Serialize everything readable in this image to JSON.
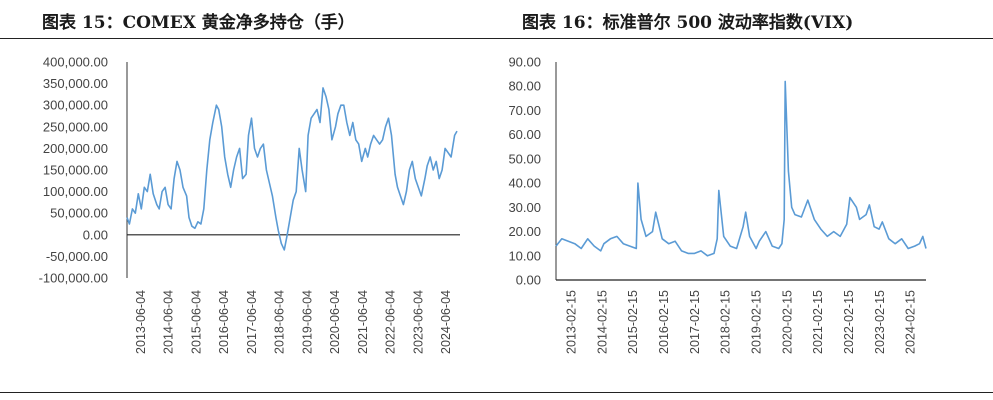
{
  "panels": {
    "left_title": "图表 15：COMEX 黄金净多持仓（手）",
    "right_title": "图表 16：标准普尔 500 波动率指数(VIX)"
  },
  "chart_data": [
    {
      "type": "line",
      "title": "图表 15：COMEX 黄金净多持仓（手）",
      "xlabel": "",
      "ylabel": "",
      "ylim": [
        -100000,
        400000
      ],
      "yticks": [
        "400,000.00",
        "350,000.00",
        "300,000.00",
        "250,000.00",
        "200,000.00",
        "150,000.00",
        "100,000.00",
        "50,000.00",
        "0.00",
        "-50,000.00",
        "-100,000.00"
      ],
      "ytick_values": [
        400000,
        350000,
        300000,
        250000,
        200000,
        150000,
        100000,
        50000,
        0,
        -50000,
        -100000
      ],
      "xticks": [
        "2013-06-04",
        "2014-06-04",
        "2015-06-04",
        "2016-06-04",
        "2017-06-04",
        "2018-06-04",
        "2019-06-04",
        "2020-06-04",
        "2021-06-04",
        "2022-06-04",
        "2023-06-04",
        "2024-06-04"
      ],
      "x_range": [
        2013.42,
        2024.6
      ],
      "color": "#5b9bd5",
      "series": [
        {
          "x": [
            2013.42,
            2013.5,
            2013.6,
            2013.7,
            2013.8,
            2013.9,
            2014.0,
            2014.1,
            2014.2,
            2014.3,
            2014.42,
            2014.5,
            2014.6,
            2014.7,
            2014.8,
            2014.9,
            2015.0,
            2015.1,
            2015.2,
            2015.3,
            2015.42,
            2015.5,
            2015.6,
            2015.7,
            2015.8,
            2015.9,
            2016.0,
            2016.1,
            2016.2,
            2016.3,
            2016.42,
            2016.5,
            2016.6,
            2016.7,
            2016.8,
            2016.9,
            2017.0,
            2017.1,
            2017.2,
            2017.3,
            2017.42,
            2017.5,
            2017.6,
            2017.7,
            2017.8,
            2017.9,
            2018.0,
            2018.1,
            2018.2,
            2018.3,
            2018.42,
            2018.5,
            2018.6,
            2018.7,
            2018.8,
            2018.9,
            2019.0,
            2019.1,
            2019.2,
            2019.3,
            2019.42,
            2019.5,
            2019.6,
            2019.7,
            2019.8,
            2019.9,
            2020.0,
            2020.1,
            2020.2,
            2020.3,
            2020.42,
            2020.5,
            2020.6,
            2020.7,
            2020.8,
            2020.9,
            2021.0,
            2021.1,
            2021.2,
            2021.3,
            2021.42,
            2021.5,
            2021.6,
            2021.7,
            2021.8,
            2021.9,
            2022.0,
            2022.1,
            2022.2,
            2022.3,
            2022.42,
            2022.5,
            2022.6,
            2022.7,
            2022.8,
            2022.9,
            2023.0,
            2023.1,
            2023.2,
            2023.3,
            2023.42,
            2023.5,
            2023.6,
            2023.7,
            2023.8,
            2023.9,
            2024.0,
            2024.1,
            2024.2,
            2024.3,
            2024.42,
            2024.5
          ],
          "y": [
            40000,
            25000,
            60000,
            50000,
            95000,
            60000,
            110000,
            100000,
            140000,
            95000,
            70000,
            60000,
            100000,
            110000,
            70000,
            60000,
            130000,
            170000,
            150000,
            110000,
            90000,
            40000,
            20000,
            15000,
            30000,
            25000,
            60000,
            150000,
            220000,
            260000,
            300000,
            290000,
            250000,
            180000,
            140000,
            110000,
            150000,
            180000,
            200000,
            130000,
            140000,
            230000,
            270000,
            200000,
            180000,
            200000,
            210000,
            150000,
            120000,
            90000,
            40000,
            10000,
            -20000,
            -35000,
            0,
            40000,
            80000,
            100000,
            200000,
            150000,
            100000,
            230000,
            270000,
            280000,
            290000,
            260000,
            340000,
            320000,
            290000,
            220000,
            250000,
            280000,
            300000,
            300000,
            260000,
            230000,
            260000,
            220000,
            210000,
            170000,
            200000,
            180000,
            210000,
            230000,
            220000,
            210000,
            220000,
            250000,
            270000,
            230000,
            140000,
            110000,
            90000,
            70000,
            100000,
            150000,
            170000,
            130000,
            110000,
            90000,
            130000,
            160000,
            180000,
            150000,
            170000,
            130000,
            150000,
            200000,
            190000,
            180000,
            230000,
            240000
          ]
        }
      ]
    },
    {
      "type": "line",
      "title": "图表 16：标准普尔 500 波动率指数(VIX)",
      "xlabel": "",
      "ylabel": "",
      "ylim": [
        0,
        90
      ],
      "yticks": [
        "90.00",
        "80.00",
        "70.00",
        "60.00",
        "50.00",
        "40.00",
        "30.00",
        "20.00",
        "10.00",
        "0.00"
      ],
      "ytick_values": [
        90,
        80,
        70,
        60,
        50,
        40,
        30,
        20,
        10,
        0
      ],
      "xticks": [
        "2013-02-15",
        "2014-02-15",
        "2015-02-15",
        "2016-02-15",
        "2017-02-15",
        "2018-02-15",
        "2019-02-15",
        "2020-02-15",
        "2021-02-15",
        "2022-02-15",
        "2023-02-15",
        "2024-02-15"
      ],
      "x_range": [
        2013.12,
        2024.55
      ],
      "color": "#5b9bd5",
      "series": [
        {
          "x": [
            2013.12,
            2013.3,
            2013.5,
            2013.7,
            2013.9,
            2014.1,
            2014.3,
            2014.5,
            2014.6,
            2014.8,
            2015.0,
            2015.2,
            2015.4,
            2015.6,
            2015.65,
            2015.75,
            2015.9,
            2016.1,
            2016.2,
            2016.4,
            2016.6,
            2016.8,
            2017.0,
            2017.2,
            2017.4,
            2017.6,
            2017.8,
            2018.0,
            2018.1,
            2018.15,
            2018.3,
            2018.5,
            2018.7,
            2018.9,
            2018.98,
            2019.1,
            2019.3,
            2019.4,
            2019.6,
            2019.8,
            2020.0,
            2020.1,
            2020.17,
            2020.2,
            2020.3,
            2020.4,
            2020.5,
            2020.7,
            2020.9,
            2021.1,
            2021.3,
            2021.5,
            2021.7,
            2021.9,
            2022.1,
            2022.2,
            2022.4,
            2022.5,
            2022.7,
            2022.8,
            2022.95,
            2023.1,
            2023.2,
            2023.4,
            2023.6,
            2023.8,
            2024.0,
            2024.2,
            2024.35,
            2024.45,
            2024.55
          ],
          "y": [
            14,
            17,
            16,
            15,
            13,
            17,
            14,
            12,
            15,
            17,
            18,
            15,
            14,
            13,
            40,
            25,
            18,
            20,
            28,
            17,
            15,
            16,
            12,
            11,
            11,
            12,
            10,
            11,
            17,
            37,
            18,
            14,
            13,
            22,
            28,
            18,
            13,
            16,
            20,
            14,
            13,
            15,
            25,
            82,
            45,
            30,
            27,
            26,
            33,
            25,
            21,
            18,
            20,
            18,
            23,
            34,
            30,
            25,
            27,
            31,
            22,
            21,
            24,
            17,
            15,
            17,
            13,
            14,
            15,
            18,
            13
          ]
        }
      ]
    }
  ]
}
